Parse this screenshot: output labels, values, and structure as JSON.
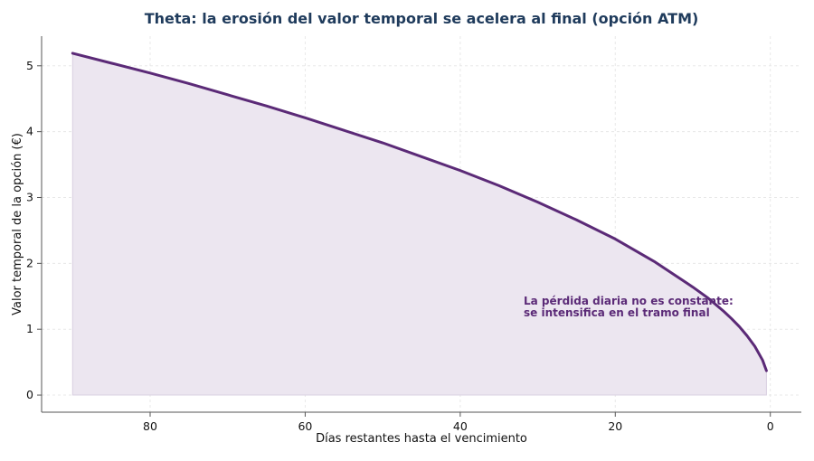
{
  "chart_data": {
    "type": "area",
    "title": "Theta: la erosión del valor temporal se acelera al final (opción ATM)",
    "xlabel": "Días restantes hasta el vencimiento",
    "ylabel": "Valor temporal de la opción (€)",
    "x_reversed": true,
    "xlim": [
      94,
      -4
    ],
    "ylim": [
      -0.26,
      5.45
    ],
    "xticks": [
      "80",
      "60",
      "40",
      "20",
      "0"
    ],
    "yticks": [
      "0",
      "1",
      "2",
      "3",
      "4",
      "5"
    ],
    "grid": true,
    "series": [
      {
        "x": [
          90,
          85,
          80,
          75,
          70,
          65,
          60,
          55,
          50,
          45,
          40,
          35,
          30,
          25,
          20,
          15,
          10,
          8,
          6,
          5,
          4,
          3,
          2,
          1,
          0.5
        ],
        "y": [
          5.19,
          5.04,
          4.89,
          4.73,
          4.56,
          4.39,
          4.21,
          4.02,
          3.83,
          3.62,
          3.41,
          3.18,
          2.93,
          2.66,
          2.37,
          2.03,
          1.64,
          1.47,
          1.27,
          1.16,
          1.04,
          0.9,
          0.74,
          0.53,
          0.37
        ]
      }
    ],
    "annotation": {
      "lines": [
        "La pérdida diaria no es constante:",
        "se intensifica en el tramo final"
      ]
    },
    "colors": {
      "line": "#5b2a77",
      "fill": "#ece6f0",
      "title": "#1f3b5c",
      "annotation": "#5b2a77",
      "grid": "#e8e8e8",
      "axis": "#555555"
    }
  }
}
